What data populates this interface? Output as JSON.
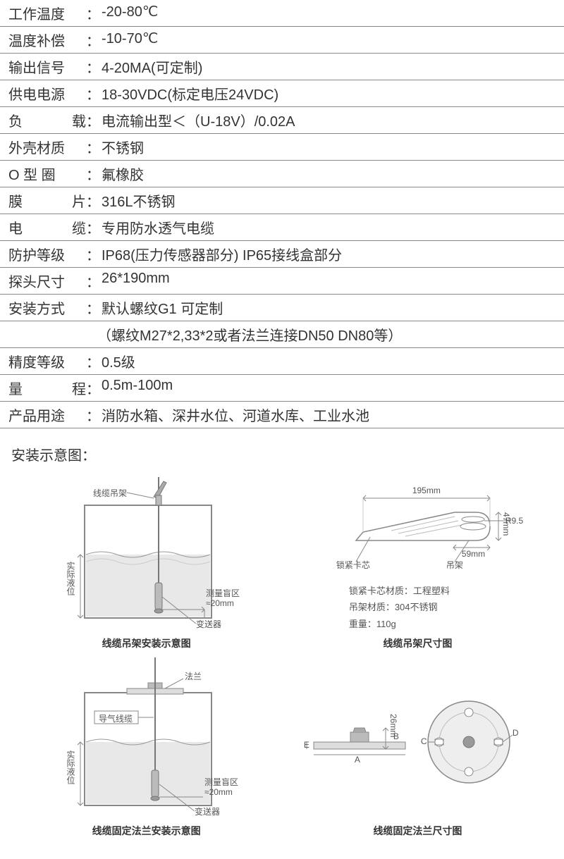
{
  "specs": [
    {
      "label": "工作温度",
      "value": "-20-80℃",
      "justify": false
    },
    {
      "label": "温度补偿",
      "value": "-10-70℃",
      "justify": false
    },
    {
      "label": "输出信号",
      "value": "4-20MA(可定制)",
      "justify": false
    },
    {
      "label": "供电电源",
      "value": "18-30VDC(标定电压24VDC)",
      "justify": false
    },
    {
      "label": "负载",
      "value": "电流输出型＜（U-18V）/0.02A",
      "justify": true
    },
    {
      "label": "外壳材质",
      "value": "不锈钢",
      "justify": false
    },
    {
      "label": "O 型 圈",
      "value": "氟橡胶",
      "justify": false
    },
    {
      "label": "膜片",
      "value": "316L不锈钢",
      "justify": true
    },
    {
      "label": "电缆",
      "value": "专用防水透气电缆",
      "justify": true
    },
    {
      "label": "防护等级",
      "value": "IP68(压力传感器部分) IP65接线盒部分",
      "justify": false
    },
    {
      "label": "探头尺寸",
      "value": "26*190mm",
      "justify": false
    },
    {
      "label": "安装方式",
      "value": "默认螺纹G1 可定制",
      "extra": "（螺纹M27*2,33*2或者法兰连接DN50 DN80等）",
      "justify": false
    },
    {
      "label": "精度等级",
      "value": "0.5级",
      "justify": false
    },
    {
      "label": "量程",
      "value": "0.5m-100m",
      "justify": true
    },
    {
      "label": "产品用途",
      "value": "消防水箱、深井水位、河道水库、工业水池",
      "justify": false
    }
  ],
  "section_title": "安装示意图：",
  "diagrams": {
    "d1": {
      "caption": "线缆吊架安装示意图",
      "labels": {
        "cable_hanger": "线缆吊架",
        "level": "实际液位",
        "blind": "测量盲区",
        "blind_val": "≈20mm",
        "transmitter": "变送器"
      }
    },
    "d2": {
      "caption": "线缆吊架尺寸图",
      "labels": {
        "w": "195mm",
        "h1": "47mm",
        "r": "R9.5",
        "h2": "59mm",
        "lock": "锁紧卡芯",
        "hanger": "吊架"
      },
      "info": {
        "mat1": "锁紧卡芯材质：工程塑料",
        "mat2": "吊架材质：304不锈钢",
        "weight": "重量：110g"
      }
    },
    "d3": {
      "caption": "线缆固定法兰安装示意图",
      "labels": {
        "flange": "法兰",
        "cable": "导气线缆",
        "level": "实际液位",
        "blind": "测量盲区",
        "blind_val": "≈20mm",
        "transmitter": "变送器"
      }
    },
    "d4": {
      "caption": "线缆固定法兰尺寸图",
      "labels": {
        "h": "26mm",
        "A": "A",
        "B": "B",
        "C": "C",
        "D": "D",
        "E": "E"
      }
    },
    "colors": {
      "stroke": "#888888",
      "water_fill": "#e8e8e8",
      "water_stroke": "#999999",
      "probe": "#777777"
    }
  }
}
